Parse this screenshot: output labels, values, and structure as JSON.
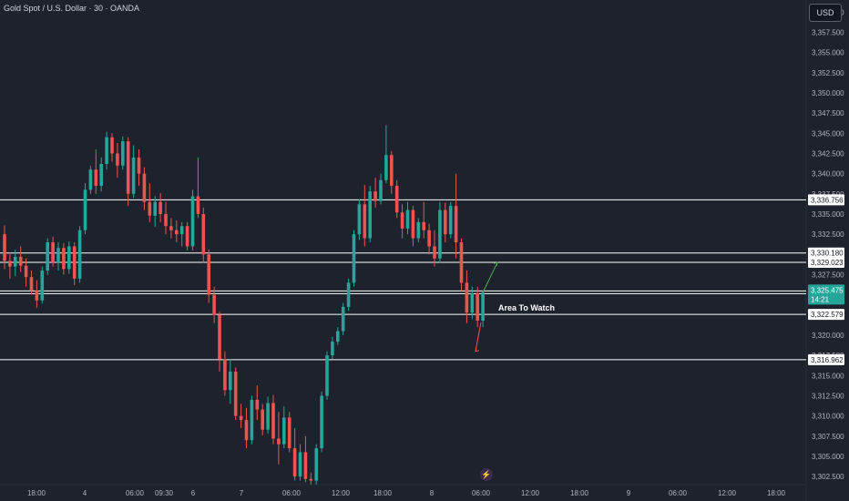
{
  "header": {
    "symbol_title": "Gold Spot / U.S. Dollar · 30 · OANDA",
    "currency": "USD"
  },
  "annotations": {
    "area_label": "Area To Watch",
    "countdown": "14:21"
  },
  "colors": {
    "background": "#1e222d",
    "bull": "#26a69a",
    "bear": "#ef5350",
    "level_line": "#ffffff",
    "axis_text": "#b2b5be"
  },
  "chart_data": {
    "type": "candlestick",
    "title": "Gold Spot / U.S. Dollar · 30 · OANDA",
    "ylim": [
      3301.5,
      3361.5
    ],
    "y_ticks": [
      3302.5,
      3305,
      3307.5,
      3310,
      3312.5,
      3315,
      3317.5,
      3320,
      3322.5,
      3325,
      3327.5,
      3330,
      3332.5,
      3335,
      3337.5,
      3340,
      3342.5,
      3345,
      3347.5,
      3350,
      3352.5,
      3355,
      3357.5,
      3360
    ],
    "x_ticks": [
      "18:00",
      "4",
      "06:00",
      "09:30",
      "6",
      "7",
      "06:00",
      "12:00",
      "18:00",
      "8",
      "06:00",
      "12:00",
      "18:00",
      "9",
      "06:00",
      "12:00",
      "18:00"
    ],
    "horizontal_levels": [
      3336.756,
      3330.18,
      3329.023,
      3325.14,
      3322.579,
      3316.962
    ],
    "current_price": 3325.475,
    "grid": false,
    "series": [
      {
        "values": [
          [
            3332.5,
            3333.6,
            3328.2,
            3329.2
          ],
          [
            3329.2,
            3330.2,
            3327.0,
            3328.5
          ],
          [
            3328.5,
            3330.6,
            3327.3,
            3329.7
          ],
          [
            3329.7,
            3331.0,
            3327.8,
            3328.6
          ],
          [
            3328.6,
            3329.5,
            3326.0,
            3327.2
          ],
          [
            3327.2,
            3328.0,
            3325.0,
            3325.5
          ],
          [
            3325.5,
            3326.8,
            3323.4,
            3324.3
          ],
          [
            3324.3,
            3328.5,
            3323.9,
            3328.0
          ],
          [
            3328.0,
            3332.0,
            3327.5,
            3331.5
          ],
          [
            3331.5,
            3332.2,
            3328.5,
            3329.0
          ],
          [
            3329.0,
            3331.5,
            3328.0,
            3330.8
          ],
          [
            3330.8,
            3331.4,
            3327.5,
            3328.2
          ],
          [
            3328.2,
            3331.6,
            3327.6,
            3331.0
          ],
          [
            3331.0,
            3331.5,
            3326.2,
            3327.0
          ],
          [
            3327.0,
            3333.5,
            3326.5,
            3333.0
          ],
          [
            3333.0,
            3338.8,
            3332.5,
            3338.0
          ],
          [
            3338.0,
            3341.0,
            3337.5,
            3340.5
          ],
          [
            3340.5,
            3343.0,
            3337.5,
            3338.5
          ],
          [
            3338.5,
            3342.0,
            3337.8,
            3341.2
          ],
          [
            3341.2,
            3345.2,
            3340.5,
            3344.5
          ],
          [
            3344.5,
            3345.0,
            3341.5,
            3342.5
          ],
          [
            3342.5,
            3343.8,
            3339.5,
            3341.0
          ],
          [
            3341.0,
            3344.6,
            3340.5,
            3344.0
          ],
          [
            3344.0,
            3344.5,
            3336.0,
            3337.5
          ],
          [
            3337.5,
            3343.5,
            3337.0,
            3342.0
          ],
          [
            3342.0,
            3343.0,
            3338.5,
            3340.0
          ],
          [
            3340.0,
            3340.8,
            3335.5,
            3336.5
          ],
          [
            3336.5,
            3338.8,
            3334.0,
            3334.8
          ],
          [
            3334.8,
            3337.2,
            3333.4,
            3336.5
          ],
          [
            3336.5,
            3337.6,
            3334.0,
            3335.0
          ],
          [
            3335.0,
            3336.5,
            3332.5,
            3333.5
          ],
          [
            3333.5,
            3334.5,
            3332.0,
            3333.0
          ],
          [
            3333.0,
            3334.2,
            3331.5,
            3332.5
          ],
          [
            3332.5,
            3334.0,
            3331.0,
            3333.5
          ],
          [
            3333.5,
            3334.0,
            3330.5,
            3331.0
          ],
          [
            3331.0,
            3338.0,
            3330.5,
            3337.2
          ],
          [
            3337.2,
            3342.0,
            3334.5,
            3335.0
          ],
          [
            3335.0,
            3335.8,
            3329.0,
            3330.0
          ],
          [
            3330.0,
            3330.6,
            3324.0,
            3325.0
          ],
          [
            3325.0,
            3326.0,
            3321.5,
            3322.5
          ],
          [
            3322.5,
            3322.9,
            3315.5,
            3317.0
          ],
          [
            3317.0,
            3318.0,
            3312.5,
            3313.2
          ],
          [
            3313.2,
            3317.0,
            3311.5,
            3315.5
          ],
          [
            3315.5,
            3316.0,
            3309.5,
            3310.0
          ],
          [
            3310.0,
            3311.5,
            3308.5,
            3309.5
          ],
          [
            3309.5,
            3311.0,
            3306.0,
            3307.0
          ],
          [
            3307.0,
            3312.5,
            3306.5,
            3312.0
          ],
          [
            3312.0,
            3313.8,
            3309.5,
            3310.8
          ],
          [
            3310.8,
            3311.5,
            3307.6,
            3308.3
          ],
          [
            3308.3,
            3312.4,
            3307.8,
            3311.6
          ],
          [
            3311.6,
            3312.6,
            3306.5,
            3307.2
          ],
          [
            3307.2,
            3310.5,
            3304.0,
            3306.5
          ],
          [
            3306.5,
            3311.2,
            3306.0,
            3309.8
          ],
          [
            3309.8,
            3310.5,
            3305.5,
            3306.0
          ],
          [
            3306.0,
            3308.5,
            3302.0,
            3302.5
          ],
          [
            3302.5,
            3306.5,
            3302.0,
            3305.5
          ],
          [
            3305.5,
            3307.5,
            3301.8,
            3302.2
          ],
          [
            3302.2,
            3303.0,
            3301.5,
            3302.0
          ],
          [
            3302.0,
            3306.5,
            3301.5,
            3306.0
          ],
          [
            3306.0,
            3313.0,
            3305.5,
            3312.5
          ],
          [
            3312.5,
            3318.0,
            3312.0,
            3317.5
          ],
          [
            3317.5,
            3319.8,
            3317.0,
            3319.2
          ],
          [
            3319.2,
            3321.0,
            3318.8,
            3320.5
          ],
          [
            3320.5,
            3324.0,
            3320.0,
            3323.5
          ],
          [
            3323.5,
            3327.0,
            3323.0,
            3326.5
          ],
          [
            3326.5,
            3333.0,
            3326.0,
            3332.5
          ],
          [
            3332.5,
            3336.8,
            3331.8,
            3336.2
          ],
          [
            3336.2,
            3338.6,
            3331.0,
            3332.0
          ],
          [
            3332.0,
            3338.5,
            3331.5,
            3337.8
          ],
          [
            3337.8,
            3339.5,
            3335.8,
            3336.6
          ],
          [
            3336.6,
            3340.0,
            3336.2,
            3339.2
          ],
          [
            3339.2,
            3346.0,
            3338.8,
            3342.3
          ],
          [
            3342.3,
            3342.8,
            3337.5,
            3338.5
          ],
          [
            3338.5,
            3339.2,
            3334.5,
            3335.2
          ],
          [
            3335.2,
            3336.2,
            3332.0,
            3333.2
          ],
          [
            3333.2,
            3336.5,
            3332.5,
            3335.5
          ],
          [
            3335.5,
            3336.0,
            3331.0,
            3332.0
          ],
          [
            3332.0,
            3334.5,
            3331.5,
            3334.0
          ],
          [
            3334.0,
            3336.5,
            3332.0,
            3333.0
          ],
          [
            3333.0,
            3333.8,
            3330.0,
            3331.0
          ],
          [
            3331.0,
            3333.0,
            3328.5,
            3329.5
          ],
          [
            3329.5,
            3336.5,
            3329.0,
            3335.5
          ],
          [
            3335.5,
            3336.4,
            3331.5,
            3332.5
          ],
          [
            3332.5,
            3336.5,
            3332.0,
            3336.0
          ],
          [
            3336.0,
            3340.0,
            3329.5,
            3331.5
          ],
          [
            3331.5,
            3332.0,
            3325.5,
            3326.5
          ],
          [
            3326.5,
            3328.0,
            3321.5,
            3322.8
          ],
          [
            3322.8,
            3326.0,
            3322.0,
            3325.2
          ],
          [
            3325.2,
            3326.0,
            3321.0,
            3321.8
          ],
          [
            3321.8,
            3325.5,
            3321.0,
            3325.3
          ]
        ]
      }
    ]
  }
}
